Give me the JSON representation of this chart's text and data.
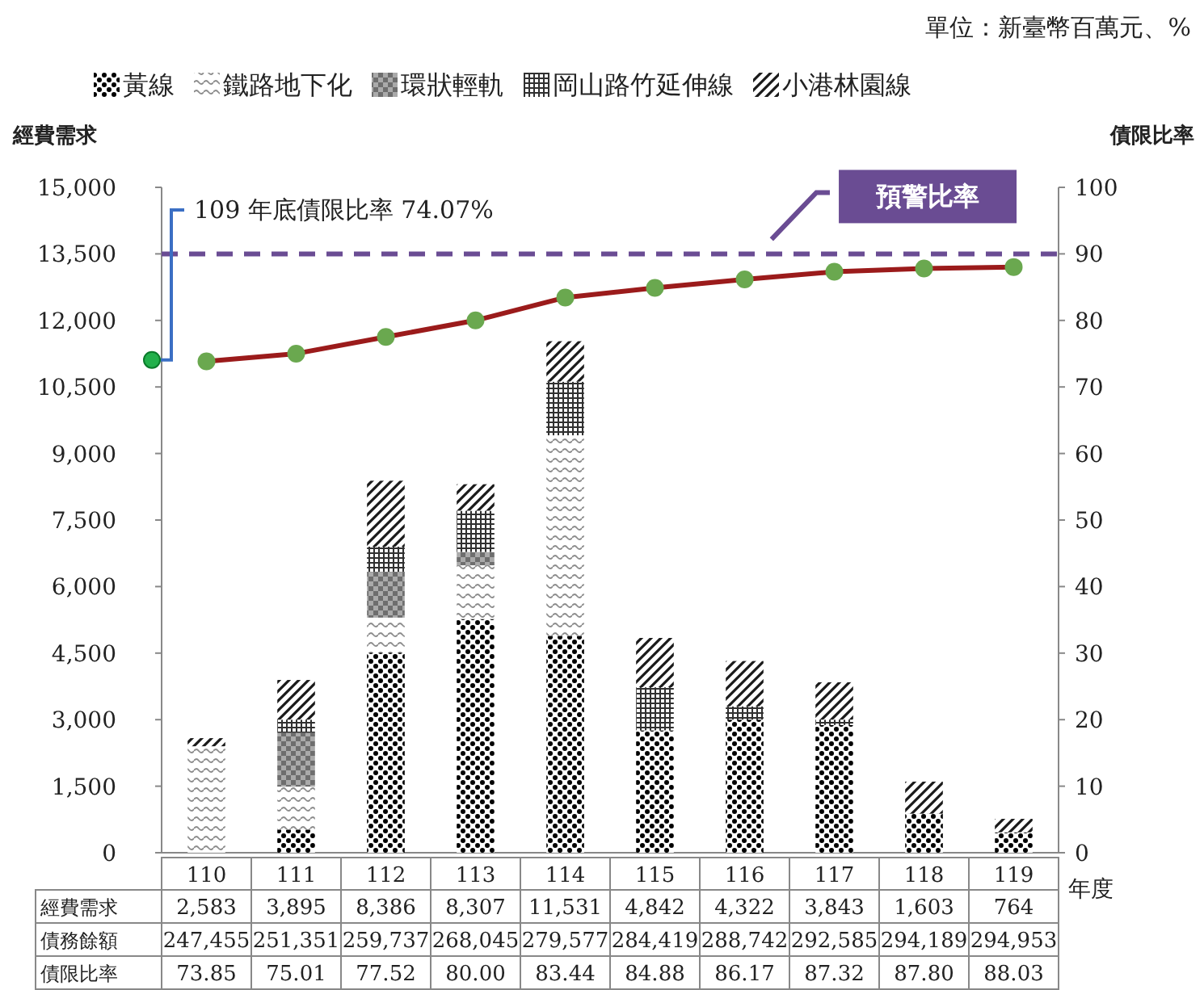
{
  "chart_data": {
    "type": "bar",
    "stacked": true,
    "subtitle": "單位：新臺幣百萬元、%",
    "ylabel": "經費需求",
    "y2label": "債限比率",
    "xlabel": "年度",
    "categories": [
      "110",
      "111",
      "112",
      "113",
      "114",
      "115",
      "116",
      "117",
      "118",
      "119"
    ],
    "series": [
      {
        "name": "黃線",
        "color": "#000000",
        "values": [
          0,
          520,
          4510,
          5270,
          4880,
          2760,
          3000,
          2880,
          880,
          460
        ]
      },
      {
        "name": "鐵路地下化",
        "color": "#8c8c8c",
        "values": [
          2400,
          970,
          790,
          1210,
          4530,
          0,
          0,
          0,
          0,
          0
        ]
      },
      {
        "name": "環狀輕軌",
        "color": "#6e6e6e",
        "values": [
          0,
          1210,
          1030,
          300,
          0,
          0,
          0,
          0,
          0,
          0
        ]
      },
      {
        "name": "岡山路竹延伸線",
        "color": "#303030",
        "values": [
          0,
          300,
          570,
          930,
          1210,
          970,
          300,
          120,
          0,
          0
        ]
      },
      {
        "name": "小港林園線",
        "color": "#1a1a1a",
        "values": [
          183,
          895,
          1486,
          597,
          911,
          1112,
          1022,
          843,
          723,
          304
        ]
      },
      {
        "type": "line",
        "axis": "y2",
        "color": "#9b1b1b",
        "marker": "circle",
        "values": [
          73.85,
          75.01,
          77.52,
          80.0,
          83.44,
          84.88,
          86.17,
          87.32,
          87.8,
          88.03
        ],
        "value_labels": [
          "73.85",
          "75.01",
          "77.52",
          "80.00",
          "83.44",
          "84.88",
          "86.17",
          "87.32",
          "87.80",
          "88.03"
        ]
      }
    ],
    "totals": [
      "2,583",
      "3,895",
      "8,386",
      "8,307",
      "11,531",
      "4,842",
      "4,322",
      "3,843",
      "1,603",
      "764"
    ],
    "ylim": [
      0,
      15000
    ],
    "yticks": [
      0,
      {
        "value": 1500,
        "label": "1,500"
      },
      {
        "value": 3000,
        "label": "3,000"
      },
      {
        "value": 4500,
        "label": "4,500"
      },
      {
        "value": 6000,
        "label": "6,000"
      },
      {
        "value": 7500,
        "label": "7,500"
      },
      {
        "value": 9000,
        "label": "9,000"
      },
      {
        "value": 10500,
        "label": "10,500"
      },
      {
        "value": 12000,
        "label": "12,000"
      },
      {
        "value": 13500,
        "label": "13,500"
      },
      {
        "value": 15000,
        "label": "15,000"
      }
    ],
    "y2lim": [
      0,
      100
    ],
    "y2ticks": [
      0,
      10,
      20,
      30,
      40,
      50,
      60,
      70,
      80,
      90,
      100
    ],
    "ref_lines": [
      {
        "axis": "y2",
        "value": 90,
        "label": "預警比率",
        "color": "#6a4c93",
        "line_style": "dashed"
      }
    ],
    "annotations": [
      "109 年底債限比率 74.07%",
      "經費需求",
      "債務餘額",
      "債限比率",
      "247,455",
      "251,351",
      "259,737",
      "268,045",
      "279,577",
      "284,419",
      "288,742",
      "292,585",
      "294,189",
      "294,953"
    ],
    "legend": "top",
    "grid": false
  }
}
